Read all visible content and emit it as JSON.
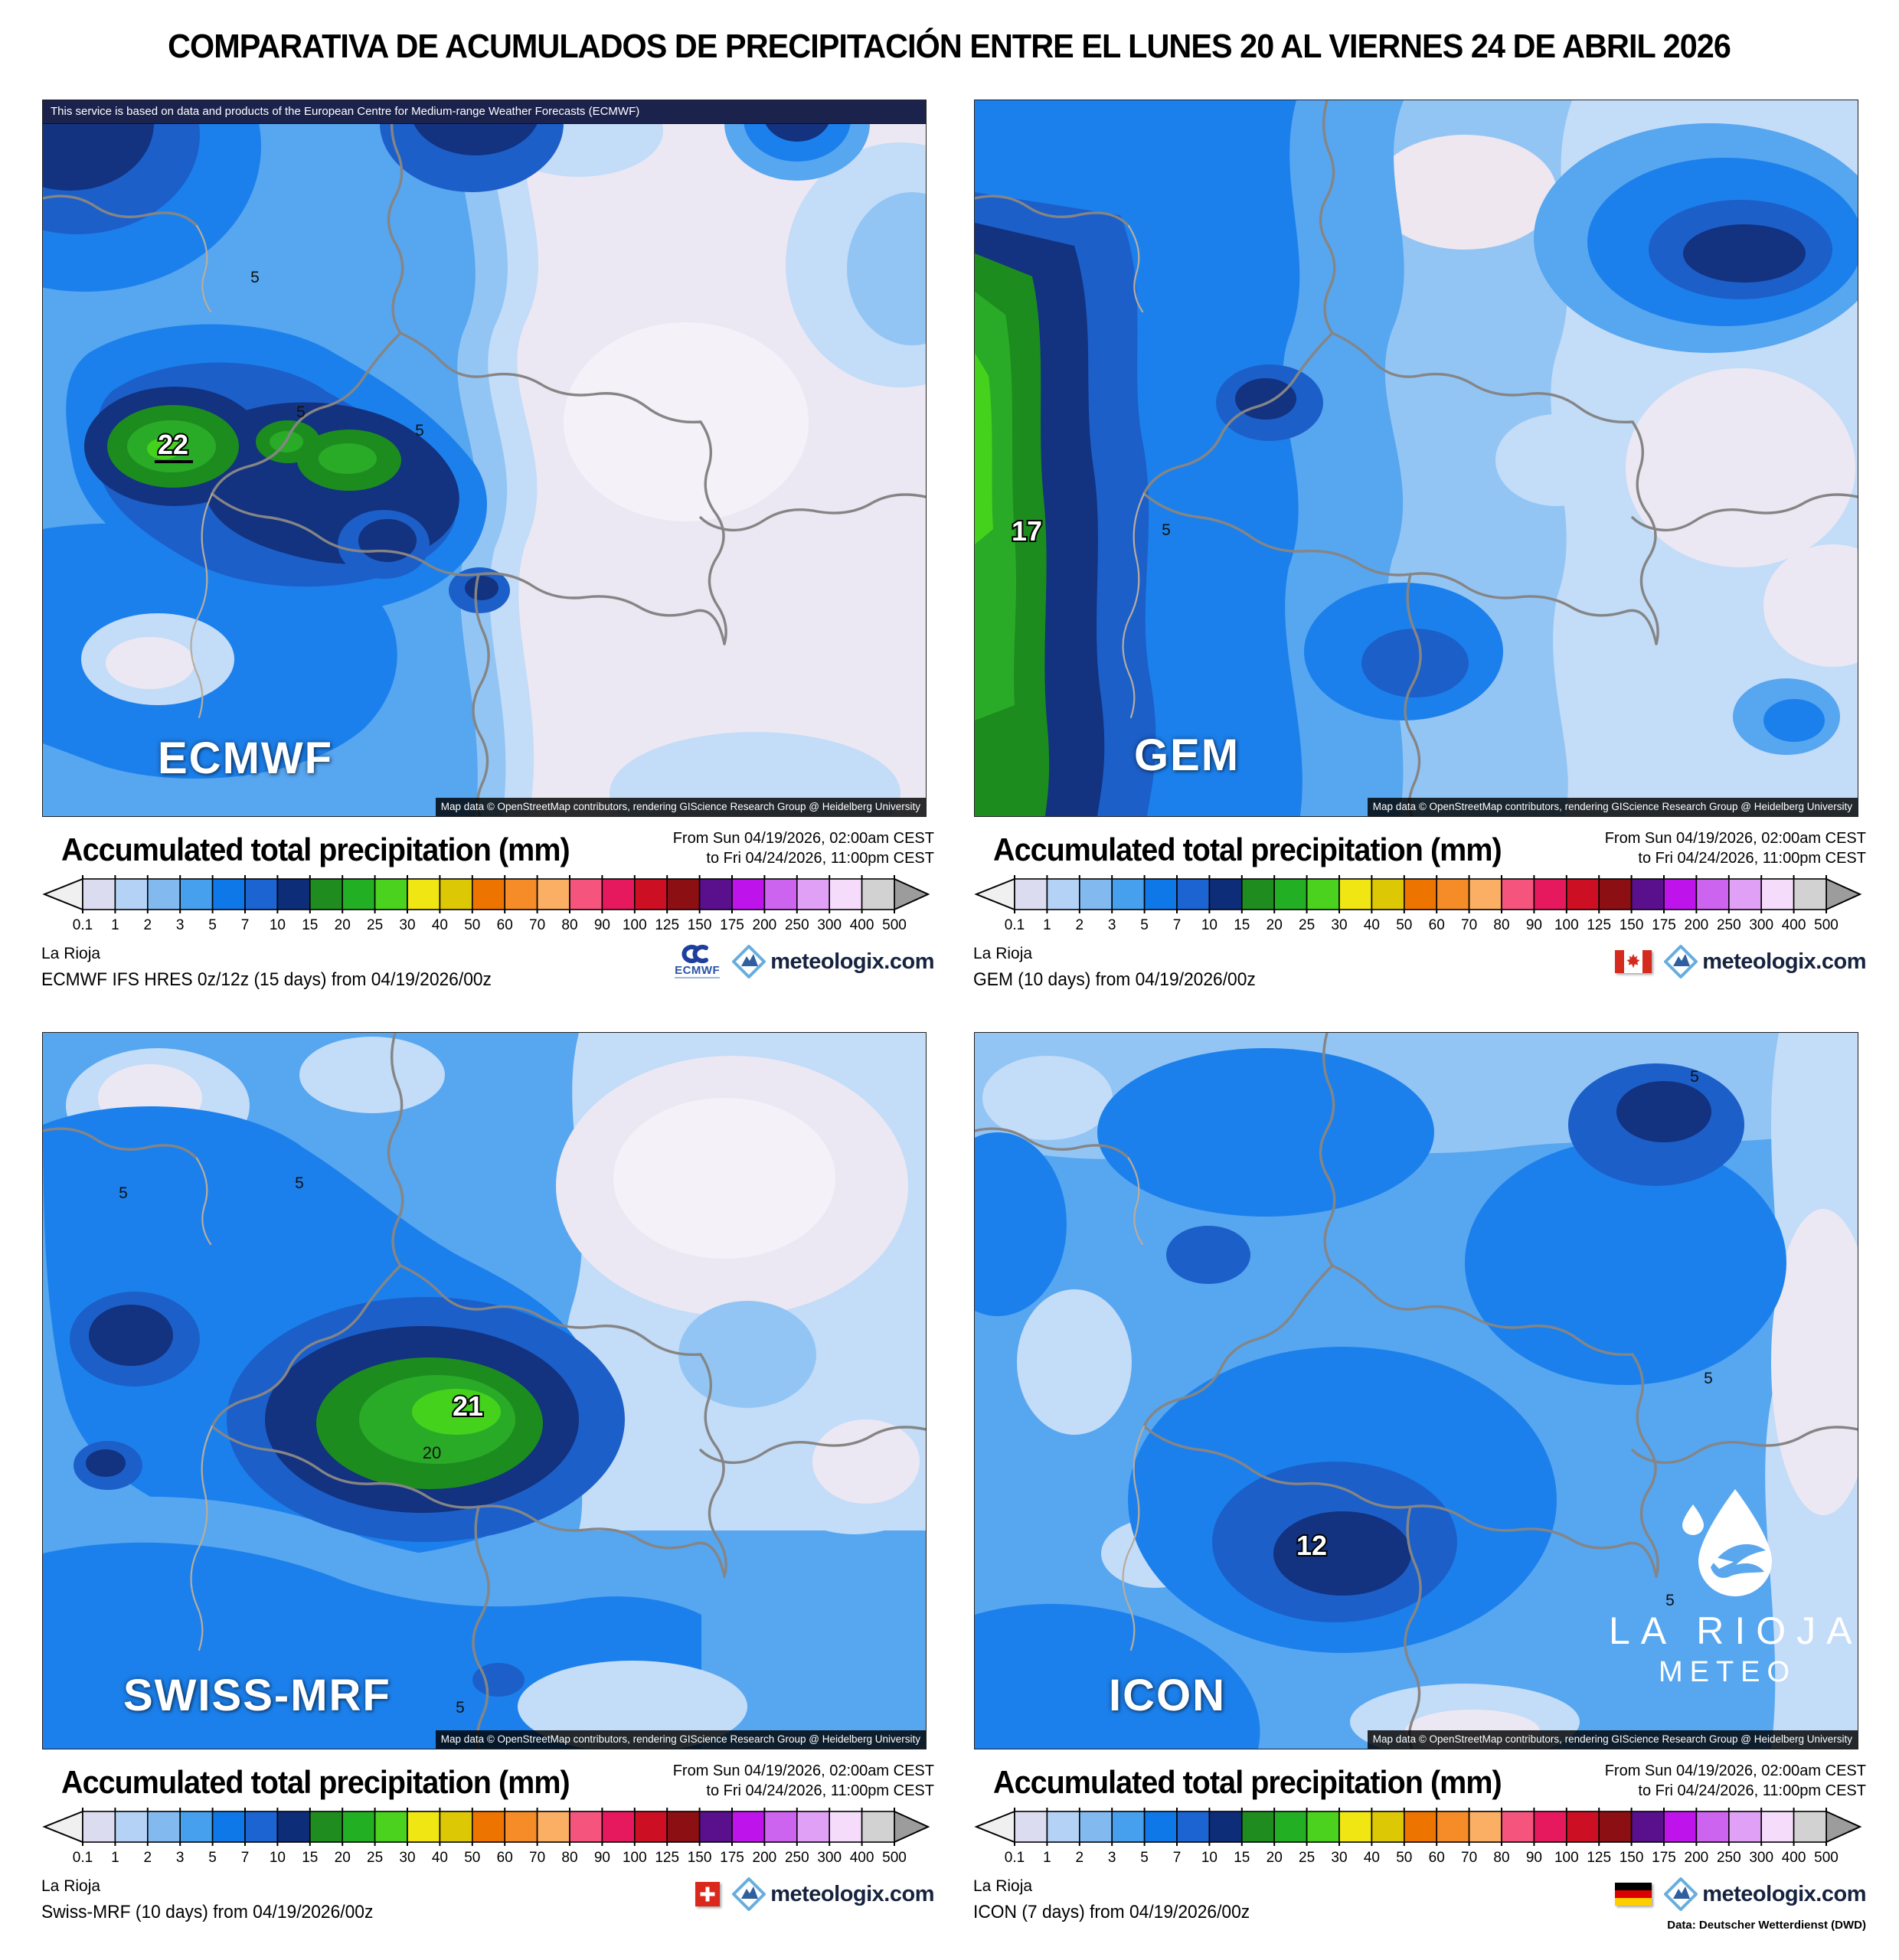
{
  "title": "COMPARATIVA DE ACUMULADOS DE PRECIPITACIÓN ENTRE EL LUNES 20 AL VIERNES 24 DE ABRIL 2026",
  "banner": {
    "ecmwf_service_note": "This service is based on data and products of the European Centre for Medium-range Weather Forecasts (ECMWF)"
  },
  "map_attribution": "Map data © OpenStreetMap contributors, rendering GIScience Research Group @ Heidelberg University",
  "legend": {
    "heading": "Accumulated total precipitation (mm)",
    "period": {
      "from": "From Sun 04/19/2026, 02:00am CEST",
      "to": "to Fri 04/24/2026, 11:00pm CEST"
    },
    "scale": {
      "tick_labels": [
        "0.1",
        "1",
        "2",
        "3",
        "5",
        "7",
        "10",
        "15",
        "20",
        "25",
        "30",
        "40",
        "50",
        "60",
        "70",
        "80",
        "90",
        "100",
        "125",
        "150",
        "175",
        "200",
        "250",
        "300",
        "400",
        "500"
      ],
      "cell_colors": [
        "#dcdcf0",
        "#b4d2f5",
        "#82baf0",
        "#46a0ee",
        "#0f78e8",
        "#1c64d2",
        "#0d2d78",
        "#1e8c1e",
        "#23af23",
        "#4bd21e",
        "#f0e614",
        "#ddc805",
        "#ee7400",
        "#f58c28",
        "#faaf64",
        "#f5557d",
        "#e6195f",
        "#cd0f23",
        "#8c0f14",
        "#5a0f8c",
        "#be14eb",
        "#cd64f0",
        "#dfa0f5",
        "#f5dcfa",
        "#d2d2d2"
      ],
      "below_min_arrow_color": "#f0f0f0",
      "above_max_arrow_color": "#9c9c9c"
    }
  },
  "panels": [
    {
      "model": "ECMWF",
      "region": "La Rioja",
      "source_line": "ECMWF IFS HRES 0z/12z (15 days) from  04/19/2026/00z",
      "flag_icon": "ecmwf-logo",
      "max_label": "22",
      "contour_labels": [
        "5",
        "5",
        "5"
      ]
    },
    {
      "model": "GEM",
      "region": "La Rioja",
      "source_line": "GEM (10 days) from  04/19/2026/00z",
      "flag_icon": "canada-flag",
      "max_label": "17",
      "contour_labels": [
        "5"
      ]
    },
    {
      "model": "SWISS-MRF",
      "region": "La Rioja",
      "source_line": "Swiss-MRF (10 days) from  04/19/2026/00z",
      "flag_icon": "switzerland-flag",
      "max_label": "21",
      "second_label": "20",
      "contour_labels": [
        "5",
        "5",
        "5"
      ]
    },
    {
      "model": "ICON",
      "region": "La Rioja",
      "source_line": "ICON (7 days) from  04/19/2026/00z",
      "flag_icon": "germany-flag",
      "max_label": "12",
      "contour_labels": [
        "5",
        "5",
        "5"
      ],
      "data_note": "Data: Deutscher Wetterdienst (DWD)"
    }
  ],
  "branding": {
    "meteologix_label": "meteologix.com",
    "ecmwf_logo_label": "ECMWF",
    "watermark": {
      "line1": "LA RIOJA",
      "line2": "METEO"
    }
  }
}
